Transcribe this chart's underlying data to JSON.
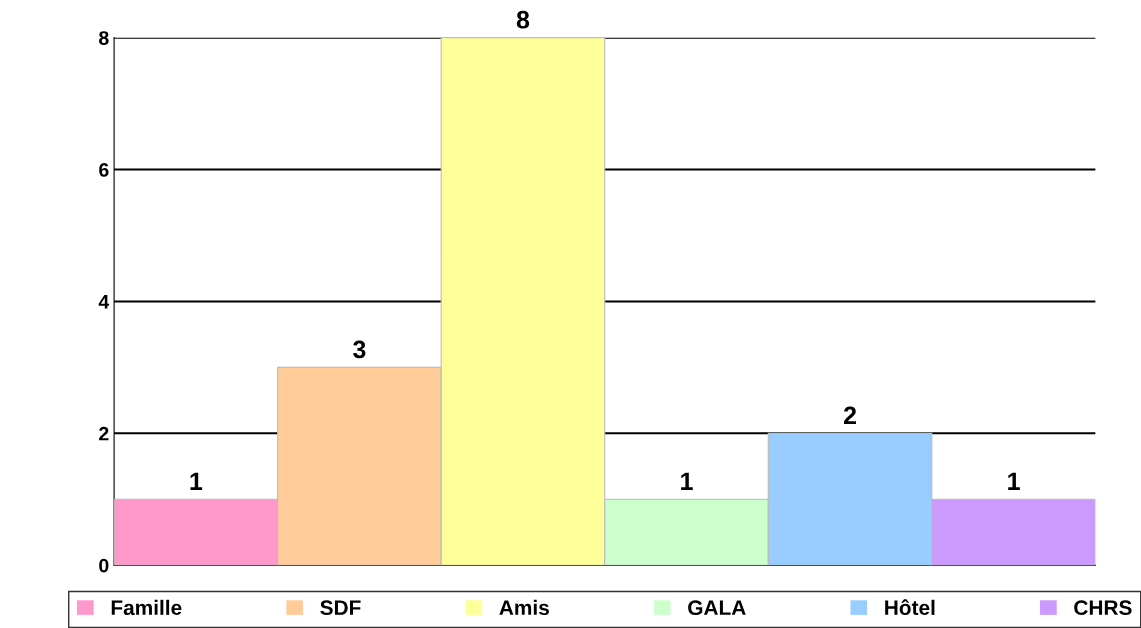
{
  "chart_data": {
    "type": "bar",
    "categories": [
      null
    ],
    "series": [
      {
        "name": "Famille",
        "color": "#ff99cc",
        "values": [
          1
        ]
      },
      {
        "name": "SDF",
        "color": "#ffcc99",
        "values": [
          3
        ]
      },
      {
        "name": "Amis",
        "color": "#ffff99",
        "values": [
          8
        ]
      },
      {
        "name": "GALA",
        "color": "#ccffcc",
        "values": [
          1
        ]
      },
      {
        "name": "Hôtel",
        "color": "#99ccff",
        "values": [
          2
        ]
      },
      {
        "name": "CHRS",
        "color": "#cc99ff",
        "values": [
          1
        ]
      }
    ],
    "ylim": [
      0,
      8
    ],
    "yticks": [
      0,
      2,
      4,
      6,
      8
    ],
    "grid": "y",
    "legend": "bottom",
    "data_labels": true
  }
}
